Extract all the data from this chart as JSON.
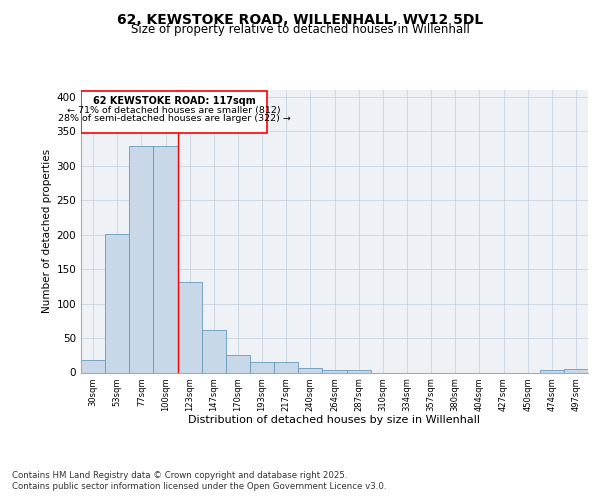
{
  "title1": "62, KEWSTOKE ROAD, WILLENHALL, WV12 5DL",
  "title2": "Size of property relative to detached houses in Willenhall",
  "xlabel": "Distribution of detached houses by size in Willenhall",
  "ylabel": "Number of detached properties",
  "bar_color": "#c8d8e8",
  "bar_edge_color": "#6699bb",
  "categories": [
    "30sqm",
    "53sqm",
    "77sqm",
    "100sqm",
    "123sqm",
    "147sqm",
    "170sqm",
    "193sqm",
    "217sqm",
    "240sqm",
    "264sqm",
    "287sqm",
    "310sqm",
    "334sqm",
    "357sqm",
    "380sqm",
    "404sqm",
    "427sqm",
    "450sqm",
    "474sqm",
    "497sqm"
  ],
  "values": [
    18,
    201,
    329,
    329,
    132,
    62,
    26,
    15,
    15,
    6,
    3,
    4,
    0,
    0,
    0,
    0,
    0,
    0,
    0,
    3,
    5
  ],
  "annotation_title": "62 KEWSTOKE ROAD: 117sqm",
  "annotation_line1": "← 71% of detached houses are smaller (812)",
  "annotation_line2": "28% of semi-detached houses are larger (322) →",
  "footer1": "Contains HM Land Registry data © Crown copyright and database right 2025.",
  "footer2": "Contains public sector information licensed under the Open Government Licence v3.0.",
  "bg_color": "#eef2f7",
  "grid_color": "#c8d4e0",
  "ylim": [
    0,
    410
  ],
  "yticks": [
    0,
    50,
    100,
    150,
    200,
    250,
    300,
    350,
    400
  ],
  "red_line_x": 3.5
}
